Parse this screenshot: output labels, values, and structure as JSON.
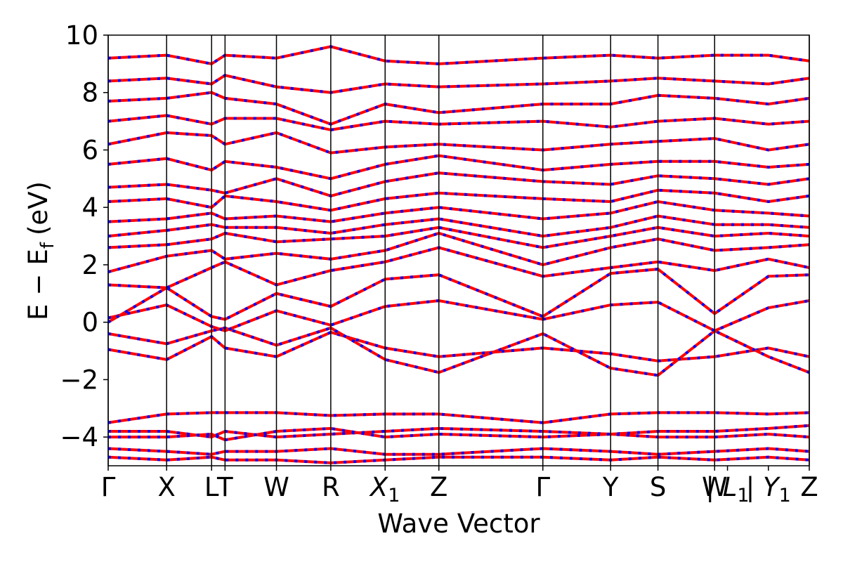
{
  "chart_data": {
    "type": "line",
    "title": "",
    "xlabel": "Wave Vector",
    "ylabel": "E − E_f (eV)",
    "ylabel_parts": {
      "e": "E",
      "minus": "−",
      "ef": "E",
      "ef_sub": "f",
      "units": "(eV)"
    },
    "ylim": [
      -5,
      10
    ],
    "yticks": [
      -4,
      -2,
      0,
      2,
      4,
      6,
      8,
      10
    ],
    "ytick_labels": [
      "−4",
      "−2",
      "0",
      "2",
      "4",
      "6",
      "8",
      "10"
    ],
    "grid": false,
    "legend": "none",
    "colors": {
      "spin_up": "#ff0000",
      "spin_down": "#0000ff",
      "axes": "#000000"
    },
    "line_style": "red solid band overlaid by blue dashed band (spin-degenerate)",
    "kpath": [
      {
        "label": "Γ",
        "pos": 0.0
      },
      {
        "label": "X",
        "pos": 1.0
      },
      {
        "label": "L",
        "pos": 1.77
      },
      {
        "label": "T",
        "pos": 2.0
      },
      {
        "label": "W",
        "pos": 2.88
      },
      {
        "label": "R",
        "pos": 3.81
      },
      {
        "label": "X",
        "sub": "1",
        "pos": 4.74
      },
      {
        "label": "Z",
        "pos": 5.66
      },
      {
        "label": "Γ",
        "pos": 7.44
      },
      {
        "label": "Y",
        "pos": 8.6
      },
      {
        "label": "S",
        "pos": 9.41
      },
      {
        "label": "W",
        "pos": 10.38
      },
      {
        "label": "| L",
        "sub": "1",
        "pos": 10.6
      },
      {
        "label": "| Y",
        "sub": "1",
        "pos": 11.3
      },
      {
        "label": "Z",
        "pos": 12.0
      }
    ],
    "kpath_lines": [
      0,
      1.0,
      1.77,
      2.0,
      2.88,
      3.81,
      4.74,
      5.66,
      7.44,
      8.6,
      9.41,
      10.38,
      12.0
    ],
    "series": [
      {
        "x": [
          0,
          1,
          1.77,
          2,
          2.88,
          3.81,
          4.74,
          5.66,
          7.44,
          8.6,
          9.41,
          10.38,
          11.3,
          12
        ],
        "y": [
          -0.95,
          -1.3,
          -0.5,
          -0.9,
          -1.2,
          -0.35,
          -0.9,
          -1.2,
          -0.9,
          -1.1,
          -1.35,
          -1.2,
          -0.9,
          -1.2
        ]
      },
      {
        "x": [
          0,
          1,
          1.77,
          2,
          2.88,
          3.81,
          4.74,
          5.66,
          7.44,
          8.6,
          9.41,
          10.38,
          11.3,
          12
        ],
        "y": [
          -0.4,
          -0.75,
          -0.3,
          -0.2,
          -0.8,
          -0.2,
          -1.3,
          -1.75,
          -0.4,
          -1.6,
          -1.85,
          -0.3,
          -1.2,
          -1.75
        ]
      },
      {
        "x": [
          0,
          1,
          1.77,
          2,
          2.88,
          3.81,
          4.74,
          5.66,
          7.44,
          8.6,
          9.41,
          10.38,
          11.3,
          12
        ],
        "y": [
          0.15,
          0.6,
          -0.15,
          -0.3,
          0.4,
          -0.1,
          0.55,
          0.75,
          0.1,
          0.6,
          0.7,
          -0.3,
          0.5,
          0.75
        ]
      },
      {
        "x": [
          0,
          1,
          1.77,
          2,
          2.88,
          3.81,
          4.74,
          5.66,
          7.44,
          8.6,
          9.41,
          10.38,
          11.3,
          12
        ],
        "y": [
          0.0,
          1.2,
          0.2,
          0.1,
          1.0,
          0.55,
          1.5,
          1.65,
          0.2,
          1.7,
          1.85,
          0.3,
          1.6,
          1.65
        ]
      },
      {
        "x": [
          0,
          1,
          1.77,
          2,
          2.88,
          3.81,
          4.74,
          5.66,
          7.44,
          8.6,
          9.41,
          10.38,
          11.3,
          12
        ],
        "y": [
          1.3,
          1.2,
          1.9,
          2.1,
          1.3,
          1.8,
          2.1,
          2.6,
          1.6,
          1.9,
          2.1,
          1.8,
          2.2,
          1.9
        ]
      },
      {
        "x": [
          0,
          1,
          1.77,
          2,
          2.88,
          3.81,
          4.74,
          5.66,
          7.44,
          8.6,
          9.41,
          10.38,
          11.3,
          12
        ],
        "y": [
          1.75,
          2.3,
          2.5,
          2.2,
          2.4,
          2.2,
          2.5,
          3.1,
          2.0,
          2.6,
          2.9,
          2.5,
          2.6,
          2.7
        ]
      },
      {
        "x": [
          0,
          1,
          1.77,
          2,
          2.88,
          3.81,
          4.74,
          5.66,
          7.44,
          8.6,
          9.41,
          10.38,
          11.3,
          12
        ],
        "y": [
          2.6,
          2.7,
          2.9,
          3.1,
          2.8,
          2.9,
          3.0,
          3.3,
          2.6,
          3.0,
          3.3,
          3.0,
          3.1,
          3.0
        ]
      },
      {
        "x": [
          0,
          1,
          1.77,
          2,
          2.88,
          3.81,
          4.74,
          5.66,
          7.44,
          8.6,
          9.41,
          10.38,
          11.3,
          12
        ],
        "y": [
          3.0,
          3.2,
          3.4,
          3.3,
          3.3,
          3.1,
          3.4,
          3.6,
          3.0,
          3.3,
          3.7,
          3.4,
          3.4,
          3.3
        ]
      },
      {
        "x": [
          0,
          1,
          1.77,
          2,
          2.88,
          3.81,
          4.74,
          5.66,
          7.44,
          8.6,
          9.41,
          10.38,
          11.3,
          12
        ],
        "y": [
          3.5,
          3.6,
          3.8,
          3.6,
          3.7,
          3.5,
          3.8,
          4.0,
          3.6,
          3.8,
          4.2,
          3.9,
          3.8,
          3.7
        ]
      },
      {
        "x": [
          0,
          1,
          1.77,
          2,
          2.88,
          3.81,
          4.74,
          5.66,
          7.44,
          8.6,
          9.41,
          10.38,
          11.3,
          12
        ],
        "y": [
          4.2,
          4.3,
          4.0,
          4.4,
          4.2,
          3.9,
          4.3,
          4.5,
          4.3,
          4.2,
          4.6,
          4.5,
          4.2,
          4.4
        ]
      },
      {
        "x": [
          0,
          1,
          1.77,
          2,
          2.88,
          3.81,
          4.74,
          5.66,
          7.44,
          8.6,
          9.41,
          10.38,
          11.3,
          12
        ],
        "y": [
          4.7,
          4.8,
          4.6,
          4.5,
          5.0,
          4.4,
          4.9,
          5.2,
          4.9,
          4.8,
          5.1,
          5.0,
          4.8,
          5.0
        ]
      },
      {
        "x": [
          0,
          1,
          1.77,
          2,
          2.88,
          3.81,
          4.74,
          5.66,
          7.44,
          8.6,
          9.41,
          10.38,
          11.3,
          12
        ],
        "y": [
          5.5,
          5.7,
          5.3,
          5.6,
          5.4,
          5.0,
          5.5,
          5.8,
          5.3,
          5.5,
          5.6,
          5.6,
          5.4,
          5.5
        ]
      },
      {
        "x": [
          0,
          1,
          1.77,
          2,
          2.88,
          3.81,
          4.74,
          5.66,
          7.44,
          8.6,
          9.41,
          10.38,
          11.3,
          12
        ],
        "y": [
          6.2,
          6.6,
          6.5,
          6.2,
          6.6,
          5.9,
          6.1,
          6.2,
          6.0,
          6.2,
          6.3,
          6.4,
          6.0,
          6.2
        ]
      },
      {
        "x": [
          0,
          1,
          1.77,
          2,
          2.88,
          3.81,
          4.74,
          5.66,
          7.44,
          8.6,
          9.41,
          10.38,
          11.3,
          12
        ],
        "y": [
          7.0,
          7.2,
          6.9,
          7.1,
          7.1,
          6.7,
          7.0,
          6.9,
          7.0,
          6.8,
          7.0,
          7.1,
          6.9,
          7.0
        ]
      },
      {
        "x": [
          0,
          1,
          1.77,
          2,
          2.88,
          3.81,
          4.74,
          5.66,
          7.44,
          8.6,
          9.41,
          10.38,
          11.3,
          12
        ],
        "y": [
          7.7,
          7.8,
          8.0,
          7.8,
          7.6,
          6.9,
          7.6,
          7.3,
          7.6,
          7.6,
          7.9,
          7.8,
          7.6,
          7.8
        ]
      },
      {
        "x": [
          0,
          1,
          1.77,
          2,
          2.88,
          3.81,
          4.74,
          5.66,
          7.44,
          8.6,
          9.41,
          10.38,
          11.3,
          12
        ],
        "y": [
          8.4,
          8.5,
          8.3,
          8.6,
          8.2,
          8.0,
          8.3,
          8.2,
          8.3,
          8.4,
          8.5,
          8.4,
          8.3,
          8.5
        ]
      },
      {
        "x": [
          0,
          1,
          1.77,
          2,
          2.88,
          3.81,
          4.74,
          5.66,
          7.44,
          8.6,
          9.41,
          10.38,
          11.3,
          12
        ],
        "y": [
          9.2,
          9.3,
          9.0,
          9.3,
          9.2,
          9.6,
          9.1,
          9.0,
          9.2,
          9.3,
          9.2,
          9.3,
          9.3,
          9.1
        ]
      },
      {
        "x": [
          0,
          1,
          1.77,
          2,
          2.88,
          3.81,
          4.74,
          5.66,
          7.44,
          8.6,
          9.41,
          10.38,
          11.3,
          12
        ],
        "y": [
          -3.5,
          -3.2,
          -3.15,
          -3.15,
          -3.15,
          -3.25,
          -3.2,
          -3.2,
          -3.5,
          -3.2,
          -3.15,
          -3.15,
          -3.2,
          -3.15
        ]
      },
      {
        "x": [
          0,
          1,
          1.77,
          2,
          2.88,
          3.81,
          4.74,
          5.66,
          7.44,
          8.6,
          9.41,
          10.38,
          11.3,
          12
        ],
        "y": [
          -3.8,
          -3.8,
          -4.0,
          -3.8,
          -4.0,
          -3.9,
          -3.8,
          -3.7,
          -3.8,
          -3.9,
          -3.8,
          -3.8,
          -3.7,
          -3.6
        ]
      },
      {
        "x": [
          0,
          1,
          1.77,
          2,
          2.88,
          3.81,
          4.74,
          5.66,
          7.44,
          8.6,
          9.41,
          10.38,
          11.3,
          12
        ],
        "y": [
          -4.0,
          -4.0,
          -3.9,
          -4.1,
          -3.8,
          -3.7,
          -4.0,
          -3.9,
          -4.0,
          -3.9,
          -4.0,
          -4.0,
          -3.9,
          -4.0
        ]
      },
      {
        "x": [
          0,
          1,
          1.77,
          2,
          2.88,
          3.81,
          4.74,
          5.66,
          7.44,
          8.6,
          9.41,
          10.38,
          11.3,
          12
        ],
        "y": [
          -4.4,
          -4.5,
          -4.6,
          -4.5,
          -4.5,
          -4.4,
          -4.6,
          -4.6,
          -4.4,
          -4.5,
          -4.6,
          -4.5,
          -4.4,
          -4.5
        ]
      },
      {
        "x": [
          0,
          1,
          1.77,
          2,
          2.88,
          3.81,
          4.74,
          5.66,
          7.44,
          8.6,
          9.41,
          10.38,
          11.3,
          12
        ],
        "y": [
          -4.7,
          -4.8,
          -4.7,
          -4.8,
          -4.8,
          -4.9,
          -4.8,
          -4.7,
          -4.7,
          -4.8,
          -4.7,
          -4.8,
          -4.7,
          -4.8
        ]
      }
    ]
  }
}
